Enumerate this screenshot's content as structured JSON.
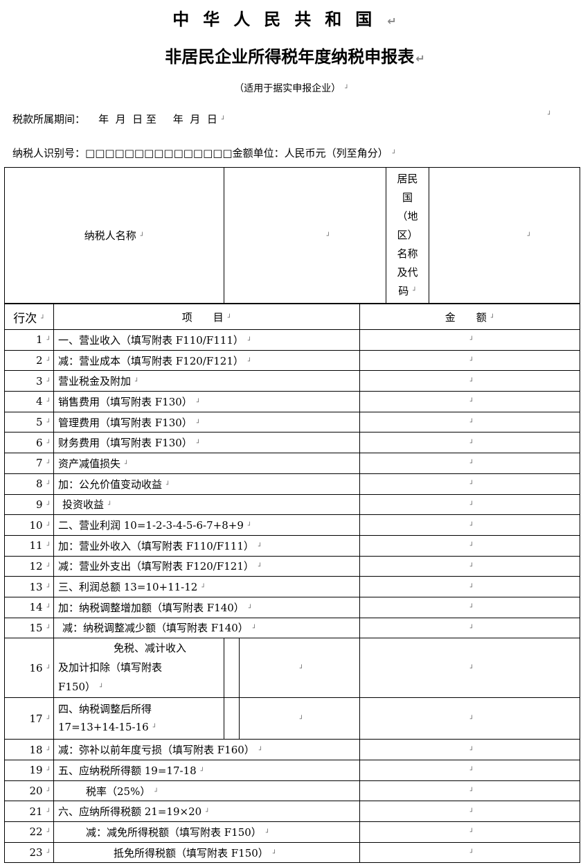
{
  "title_country": "中华人民共和国",
  "title_form": "非居民企业所得税年度纳税申报表",
  "subtitle": "（适用于据实申报企业）",
  "period_line": "税款所属期间：    年  月  日 至     年  月  日",
  "taxpayer_id_label": "纳税人识别号：",
  "taxpayer_id_boxes": "□□□□□□□□□□□□□□□",
  "currency_label": "金额单位：人民币元（列至角分）",
  "header": {
    "name_label": "纳税人名称",
    "country_label_lines": [
      "居民",
      "国",
      "（地",
      "区）",
      "名称",
      "及代",
      "码"
    ]
  },
  "columns": {
    "no": "行次",
    "item": "项　　目",
    "amount": "金　　额"
  },
  "rows": [
    {
      "no": "1",
      "item": "一、营业收入（填写附表 F110/F111）",
      "indent": 0
    },
    {
      "no": "2",
      "item": "减：营业成本（填写附表 F120/F121）",
      "indent": 0
    },
    {
      "no": "3",
      "item": "营业税金及附加",
      "indent": 0
    },
    {
      "no": "4",
      "item": "销售费用（填写附表 F130）",
      "indent": 0
    },
    {
      "no": "5",
      "item": "管理费用（填写附表 F130）",
      "indent": 0
    },
    {
      "no": "6",
      "item": "财务费用（填写附表 F130）",
      "indent": 0
    },
    {
      "no": "7",
      "item": "资产减值损失",
      "indent": 0
    },
    {
      "no": "8",
      "item": "加：公允价值变动收益",
      "indent": 0
    },
    {
      "no": "9",
      "item": "投资收益",
      "indent": 6
    },
    {
      "no": "10",
      "item": "二、营业利润  10=1-2-3-4-5-6-7+8+9",
      "indent": 0
    },
    {
      "no": "11",
      "item": "加：营业外收入（填写附表 F110/F111）",
      "indent": 0
    },
    {
      "no": "12",
      "item": "减：营业外支出（填写附表 F120/F121）",
      "indent": 0
    },
    {
      "no": "13",
      "item": "三、利润总额  13=10+11-12",
      "indent": 0
    },
    {
      "no": "14",
      "item": "加：纳税调整增加额（填写附表 F140）",
      "indent": 0
    },
    {
      "no": "15",
      "item": "减：纳税调整减少额（填写附表 F140）",
      "indent": 6
    }
  ],
  "row16": {
    "no": "16",
    "line1": "免税、减计收入",
    "line2": "及加计扣除（填写附表",
    "line3": "F150）"
  },
  "row17": {
    "no": "17",
    "line1": "四、纳税调整后所得",
    "line2": "17=13+14-15-16"
  },
  "rows_b": [
    {
      "no": "18",
      "item": "减：弥补以前年度亏损（填写附表 F160）",
      "indent": 0
    },
    {
      "no": "19",
      "item": "五、应纳税所得额  19=17-18",
      "indent": 0
    },
    {
      "no": "20",
      "item": "税率（25%）",
      "indent": 40
    },
    {
      "no": "21",
      "item": "六、应纳所得税额  21=19×20",
      "indent": 0
    },
    {
      "no": "22",
      "item": "减：减免所得税额（填写附表 F150）",
      "indent": 40
    },
    {
      "no": "23",
      "item": "抵免所得税额（填写附表 F150）",
      "indent": 80
    }
  ]
}
